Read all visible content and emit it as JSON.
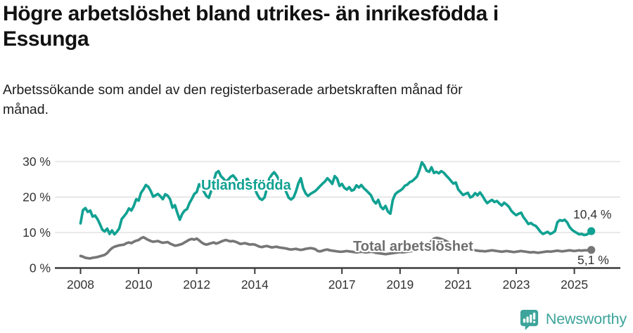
{
  "header": {
    "title_lines": [
      "Högre arbetslöshet bland utrikes- än inrikesfödda i",
      "Essunga"
    ],
    "subtitle_lines": [
      "Arbetssökande som andel av den registerbaserade arbetskraften månad för",
      "månad."
    ]
  },
  "chart_data": {
    "type": "line",
    "title": "Högre arbetslöshet bland utrikes- än inrikesfödda i Essunga",
    "subtitle": "Arbetssökande som andel av den registerbaserade arbetskraften månad för månad.",
    "unit": "%",
    "frequency": "monthly",
    "x_start": "2008-01",
    "x_end": "2025-08",
    "ylim": [
      0,
      32
    ],
    "grid": true,
    "x_ticks": [
      "2008",
      "2010",
      "2012",
      "2014",
      "2017",
      "2019",
      "2021",
      "2023",
      "2025"
    ],
    "y_ticks": [
      {
        "value": 0,
        "label": "0 %"
      },
      {
        "value": 10,
        "label": "10 %"
      },
      {
        "value": 20,
        "label": "20 %"
      },
      {
        "value": 30,
        "label": "30 %"
      }
    ],
    "series": [
      {
        "name": "Utlandsfödda",
        "color": "#11a192",
        "end_label": "10,4 %",
        "end_value": 10.4,
        "values": [
          12.6,
          16.3,
          16.9,
          15.8,
          16.2,
          14.5,
          14.8,
          13.8,
          12.4,
          10.8,
          10.3,
          11.1,
          9.6,
          10.6,
          9.5,
          10.2,
          11.2,
          13.8,
          14.6,
          15.5,
          16.8,
          16.2,
          17.5,
          19.4,
          19.0,
          21.2,
          22.2,
          23.4,
          22.9,
          21.7,
          20.1,
          20.5,
          20.9,
          20.2,
          19.4,
          20.8,
          20.4,
          19.4,
          17.0,
          17.7,
          15.5,
          13.6,
          15.2,
          16.2,
          16.6,
          18.3,
          19.5,
          20.9,
          21.4,
          23.6,
          22.8,
          21.5,
          20.3,
          19.8,
          21.8,
          24.5,
          26.8,
          27.3,
          25.9,
          25.2,
          24.4,
          24.9,
          25.7,
          26.1,
          25.3,
          24.2,
          23.1,
          23.9,
          24.8,
          25.1,
          24.1,
          23.2,
          22.3,
          20.8,
          19.6,
          19.2,
          19.9,
          22.4,
          25.2,
          26.3,
          27.0,
          26.1,
          24.8,
          23.5,
          22.6,
          21.4,
          19.8,
          19.3,
          19.9,
          21.6,
          23.9,
          25.3,
          22.5,
          21.0,
          20.3,
          20.9,
          21.3,
          21.7,
          22.4,
          23.1,
          23.8,
          24.4,
          25.3,
          24.6,
          23.7,
          25.9,
          25.2,
          23.1,
          23.7,
          22.6,
          22.1,
          22.8,
          21.8,
          22.1,
          23.3,
          22.7,
          23.4,
          22.5,
          21.9,
          21.2,
          20.5,
          19.0,
          18.2,
          19.2,
          17.3,
          16.6,
          17.5,
          15.9,
          15.3,
          19.2,
          20.8,
          21.4,
          21.8,
          22.3,
          23.2,
          23.5,
          24.2,
          24.5,
          25.1,
          25.8,
          27.5,
          29.8,
          28.9,
          27.4,
          27.1,
          28.4,
          26.8,
          27.1,
          26.7,
          27.3,
          26.9,
          26.1,
          25.4,
          24.6,
          23.8,
          24.1,
          22.2,
          21.4,
          20.6,
          20.9,
          21.2,
          19.9,
          20.2,
          21.1,
          20.5,
          21.3,
          20.4,
          19.2,
          18.3,
          18.8,
          19.2,
          18.6,
          18.9,
          18.2,
          17.6,
          18.4,
          17.9,
          17.2,
          16.1,
          15.4,
          14.9,
          15.3,
          15.6,
          14.3,
          13.4,
          12.4,
          12.7,
          12.2,
          11.9,
          11.1,
          10.2,
          9.6,
          9.9,
          10.2,
          9.6,
          9.9,
          10.4,
          12.9,
          13.5,
          13.3,
          13.6,
          12.9,
          11.6,
          10.8,
          10.3,
          9.9,
          9.5,
          9.6,
          9.3,
          9.4,
          9.8,
          10.4
        ]
      },
      {
        "name": "Total arbetslöshet",
        "color": "#767676",
        "end_label": "5,1 %",
        "end_value": 5.1,
        "values": [
          3.4,
          3.2,
          2.9,
          2.8,
          2.7,
          2.9,
          3.0,
          3.1,
          3.3,
          3.5,
          3.7,
          4.2,
          5.0,
          5.6,
          6.0,
          6.2,
          6.4,
          6.5,
          6.6,
          7.0,
          7.2,
          7.0,
          7.4,
          7.7,
          7.9,
          8.4,
          8.7,
          8.3,
          7.9,
          7.6,
          7.4,
          7.5,
          7.6,
          7.3,
          7.1,
          7.2,
          7.3,
          6.9,
          6.6,
          6.3,
          6.4,
          6.6,
          6.8,
          7.2,
          7.6,
          8.0,
          8.2,
          8.0,
          8.3,
          7.8,
          7.2,
          6.8,
          6.6,
          6.8,
          7.0,
          7.2,
          6.9,
          7.1,
          7.4,
          7.7,
          7.9,
          7.7,
          7.5,
          7.6,
          7.4,
          7.1,
          6.8,
          6.9,
          7.0,
          6.8,
          6.6,
          6.7,
          6.6,
          6.3,
          6.0,
          5.9,
          6.1,
          6.2,
          6.0,
          5.8,
          5.9,
          6.0,
          5.8,
          5.7,
          5.6,
          5.5,
          5.3,
          5.2,
          5.3,
          5.4,
          5.2,
          5.1,
          5.2,
          5.4,
          5.5,
          5.6,
          5.5,
          5.3,
          4.8,
          4.7,
          4.9,
          5.1,
          5.2,
          5.0,
          4.9,
          4.8,
          4.7,
          4.6,
          4.6,
          4.7,
          4.8,
          4.7,
          4.6,
          4.5,
          4.4,
          4.5,
          4.6,
          4.5,
          4.4,
          4.5,
          4.6,
          4.5,
          4.3,
          4.2,
          4.1,
          4.0,
          3.9,
          4.0,
          4.1,
          4.2,
          4.3,
          4.4,
          4.5,
          4.4,
          4.5,
          4.6,
          4.7,
          4.8,
          4.9,
          5.0,
          5.2,
          5.5,
          5.8,
          6.2,
          6.8,
          7.6,
          8.3,
          8.5,
          8.4,
          8.2,
          7.9,
          7.6,
          7.2,
          6.9,
          6.6,
          6.4,
          6.2,
          6.0,
          5.8,
          5.6,
          5.4,
          5.2,
          5.1,
          5.0,
          4.9,
          4.8,
          4.8,
          4.7,
          4.8,
          4.9,
          5.0,
          4.9,
          4.8,
          4.7,
          4.6,
          4.7,
          4.8,
          4.7,
          4.6,
          4.5,
          4.6,
          4.7,
          4.8,
          4.7,
          4.6,
          4.5,
          4.4,
          4.5,
          4.4,
          4.3,
          4.4,
          4.5,
          4.6,
          4.7,
          4.6,
          4.7,
          4.8,
          4.9,
          4.8,
          4.7,
          4.8,
          4.9,
          5.0,
          4.9,
          4.8,
          4.9,
          5.0,
          4.9,
          5.0,
          5.0,
          5.0,
          5.1
        ]
      }
    ],
    "legend_position": "inline-labels"
  },
  "colors": {
    "accent_teal": "#11a192",
    "series_gray": "#767676",
    "axis": "#3b3b3b",
    "grid": "#dcdcdc",
    "tick_text": "#333333",
    "logo_teal": "#3da49b"
  },
  "footer": {
    "brand": "Newsworthy"
  }
}
